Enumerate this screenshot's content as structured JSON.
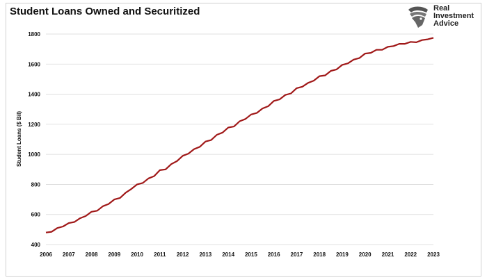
{
  "title": "Student Loans Owned and Securitized",
  "logo": {
    "line1": "Real",
    "line2": "Investment",
    "line3": "Advice",
    "icon": "eagle-head-icon"
  },
  "chart_data": {
    "type": "line",
    "title": "Student Loans Owned and Securitized",
    "ylabel": "Student Loans ($ Bil)",
    "xlabel": "",
    "ylim": [
      400,
      1800
    ],
    "yticks": [
      400,
      600,
      800,
      1000,
      1200,
      1400,
      1600,
      1800
    ],
    "x_tick_labels": [
      "2006",
      "2007",
      "2008",
      "2009",
      "2010",
      "2011",
      "2012",
      "2013",
      "2014",
      "2015",
      "2016",
      "2017",
      "2018",
      "2019",
      "2020",
      "2021",
      "2022",
      "2023"
    ],
    "grid": "horizontal",
    "color": "#a01818",
    "series": [
      {
        "x": [
          2006.0,
          2006.25,
          2006.5,
          2006.75,
          2007.0,
          2007.25,
          2007.5,
          2007.75,
          2008.0,
          2008.25,
          2008.5,
          2008.75,
          2009.0,
          2009.25,
          2009.5,
          2009.75,
          2010.0,
          2010.25,
          2010.5,
          2010.75,
          2011.0,
          2011.25,
          2011.5,
          2011.75,
          2012.0,
          2012.25,
          2012.5,
          2012.75,
          2013.0,
          2013.25,
          2013.5,
          2013.75,
          2014.0,
          2014.25,
          2014.5,
          2014.75,
          2015.0,
          2015.25,
          2015.5,
          2015.75,
          2016.0,
          2016.25,
          2016.5,
          2016.75,
          2017.0,
          2017.25,
          2017.5,
          2017.75,
          2018.0,
          2018.25,
          2018.5,
          2018.75,
          2019.0,
          2019.25,
          2019.5,
          2019.75,
          2020.0,
          2020.25,
          2020.5,
          2020.75,
          2021.0,
          2021.25,
          2021.5,
          2021.75,
          2022.0,
          2022.25,
          2022.5,
          2022.75,
          2023.0
        ],
        "values": [
          480,
          485,
          510,
          520,
          543,
          550,
          575,
          590,
          618,
          625,
          655,
          670,
          700,
          710,
          745,
          770,
          800,
          810,
          840,
          855,
          895,
          900,
          935,
          955,
          990,
          1005,
          1035,
          1050,
          1085,
          1095,
          1130,
          1145,
          1178,
          1185,
          1220,
          1235,
          1265,
          1275,
          1305,
          1320,
          1355,
          1365,
          1395,
          1405,
          1440,
          1450,
          1475,
          1490,
          1520,
          1525,
          1555,
          1565,
          1595,
          1605,
          1630,
          1640,
          1670,
          1675,
          1695,
          1695,
          1715,
          1720,
          1735,
          1735,
          1748,
          1745,
          1760,
          1765,
          1775
        ]
      }
    ]
  }
}
